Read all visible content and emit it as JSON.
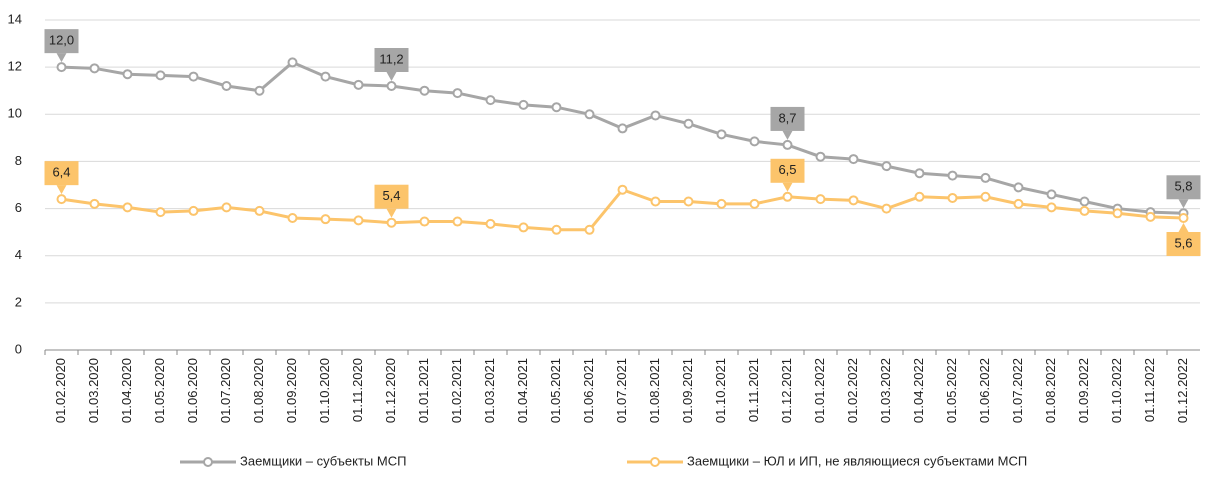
{
  "chart_data": {
    "type": "line",
    "categories": [
      "01.02.2020",
      "01.03.2020",
      "01.04.2020",
      "01.05.2020",
      "01.06.2020",
      "01.07.2020",
      "01.08.2020",
      "01.09.2020",
      "01.10.2020",
      "01.11.2020",
      "01.12.2020",
      "01.01.2021",
      "01.02.2021",
      "01.03.2021",
      "01.04.2021",
      "01.05.2021",
      "01.06.2021",
      "01.07.2021",
      "01.08.2021",
      "01.09.2021",
      "01.10.2021",
      "01.11.2021",
      "01.12.2021",
      "01.01.2022",
      "01.02.2022",
      "01.03.2022",
      "01.04.2022",
      "01.05.2022",
      "01.06.2022",
      "01.07.2022",
      "01.08.2022",
      "01.09.2022",
      "01.10.2022",
      "01.11.2022",
      "01.12.2022"
    ],
    "series": [
      {
        "name": "Заемщики – субъекты МСП",
        "color": "#a6a6a6",
        "values": [
          12.0,
          11.95,
          11.7,
          11.65,
          11.6,
          11.2,
          11.0,
          12.2,
          11.6,
          11.25,
          11.2,
          11.0,
          10.9,
          10.6,
          10.4,
          10.3,
          10.0,
          9.4,
          9.95,
          9.6,
          9.15,
          8.85,
          8.7,
          8.2,
          8.1,
          7.8,
          7.5,
          7.4,
          7.3,
          6.9,
          6.6,
          6.3,
          6.0,
          5.85,
          5.8
        ],
        "value_labels": [
          "12,0",
          null,
          null,
          null,
          null,
          null,
          null,
          null,
          null,
          null,
          "11,2",
          null,
          null,
          null,
          null,
          null,
          null,
          null,
          null,
          null,
          null,
          null,
          "8,7",
          null,
          null,
          null,
          null,
          null,
          null,
          null,
          null,
          null,
          null,
          null,
          "5,8"
        ]
      },
      {
        "name": "Заемщики – ЮЛ и ИП, не являющиеся субъектами МСП",
        "color": "#fcc46b",
        "values": [
          6.4,
          6.2,
          6.05,
          5.85,
          5.9,
          6.05,
          5.9,
          5.6,
          5.55,
          5.5,
          5.4,
          5.45,
          5.45,
          5.35,
          5.2,
          5.1,
          5.1,
          6.8,
          6.3,
          6.3,
          6.2,
          6.2,
          6.5,
          6.4,
          6.35,
          6.0,
          6.5,
          6.45,
          6.5,
          6.2,
          6.05,
          5.9,
          5.8,
          5.65,
          5.6
        ],
        "value_labels": [
          "6,4",
          null,
          null,
          null,
          null,
          null,
          null,
          null,
          null,
          null,
          "5,4",
          null,
          null,
          null,
          null,
          null,
          null,
          null,
          null,
          null,
          null,
          null,
          "6,5",
          null,
          null,
          null,
          null,
          null,
          null,
          null,
          null,
          null,
          null,
          null,
          "5,6"
        ]
      }
    ],
    "ylim": [
      0,
      14
    ],
    "yticks": [
      0,
      2,
      4,
      6,
      8,
      10,
      12,
      14
    ],
    "grid": true,
    "legend": "bottom"
  }
}
